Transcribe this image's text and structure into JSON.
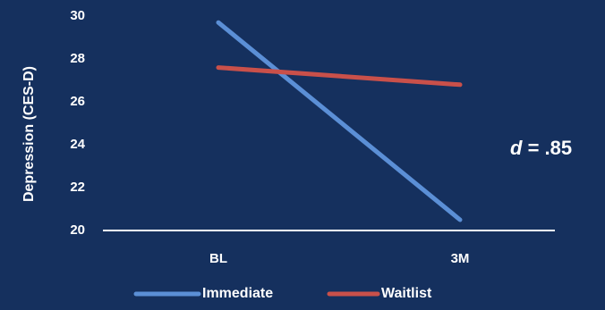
{
  "chart_data": {
    "type": "line",
    "title": "",
    "xlabel": "",
    "ylabel": "Depression (CES-D)",
    "categories": [
      "BL",
      "3M"
    ],
    "ylim": [
      20,
      30
    ],
    "yticks": [
      20,
      22,
      24,
      26,
      28,
      30
    ],
    "grid": false,
    "legend_position": "bottom",
    "series": [
      {
        "name": "Immediate",
        "values": [
          29.7,
          20.5
        ],
        "color": "#5b8fd6"
      },
      {
        "name": "Waitlist",
        "values": [
          27.6,
          26.8
        ],
        "color": "#c9504a"
      }
    ],
    "annotation": {
      "italic": "d",
      "rest": " = .85"
    },
    "colors": {
      "background": "#15305e",
      "axis": "#ffffff",
      "text": "#ffffff"
    }
  }
}
